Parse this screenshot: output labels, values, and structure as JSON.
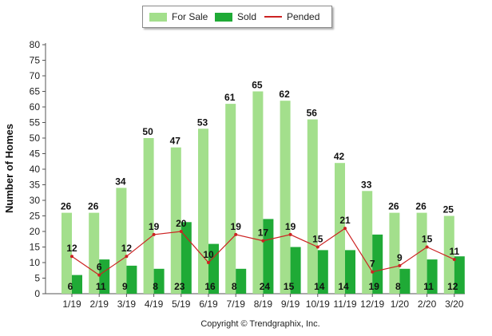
{
  "legend": {
    "for_sale": "For Sale",
    "sold": "Sold",
    "pended": "Pended"
  },
  "copyright": "Copyright © Trendgraphix, Inc.",
  "colors": {
    "for_sale": "#a3df8c",
    "sold": "#1faa36",
    "pended": "#cc2222"
  },
  "chart_data": {
    "type": "bar",
    "categories": [
      "1/19",
      "2/19",
      "3/19",
      "4/19",
      "5/19",
      "6/19",
      "7/19",
      "8/19",
      "9/19",
      "10/19",
      "11/19",
      "12/19",
      "1/20",
      "2/20",
      "3/20"
    ],
    "series": [
      {
        "name": "For Sale",
        "type": "bar",
        "values": [
          26,
          26,
          34,
          50,
          47,
          53,
          61,
          65,
          62,
          56,
          42,
          33,
          26,
          26,
          25
        ]
      },
      {
        "name": "Sold",
        "type": "bar",
        "values": [
          6,
          11,
          9,
          8,
          23,
          16,
          8,
          24,
          15,
          14,
          14,
          19,
          8,
          11,
          12
        ]
      },
      {
        "name": "Pended",
        "type": "line",
        "values": [
          12,
          6,
          12,
          19,
          20,
          10,
          19,
          17,
          19,
          15,
          21,
          7,
          9,
          15,
          11
        ]
      }
    ],
    "ylabel": "Number of Homes",
    "xlabel": "",
    "yticks": [
      0,
      5,
      10,
      15,
      20,
      25,
      30,
      35,
      40,
      45,
      50,
      55,
      60,
      65,
      70,
      75,
      80
    ],
    "ylim": [
      0,
      80
    ],
    "grid": false,
    "legend_position": "top-center"
  }
}
